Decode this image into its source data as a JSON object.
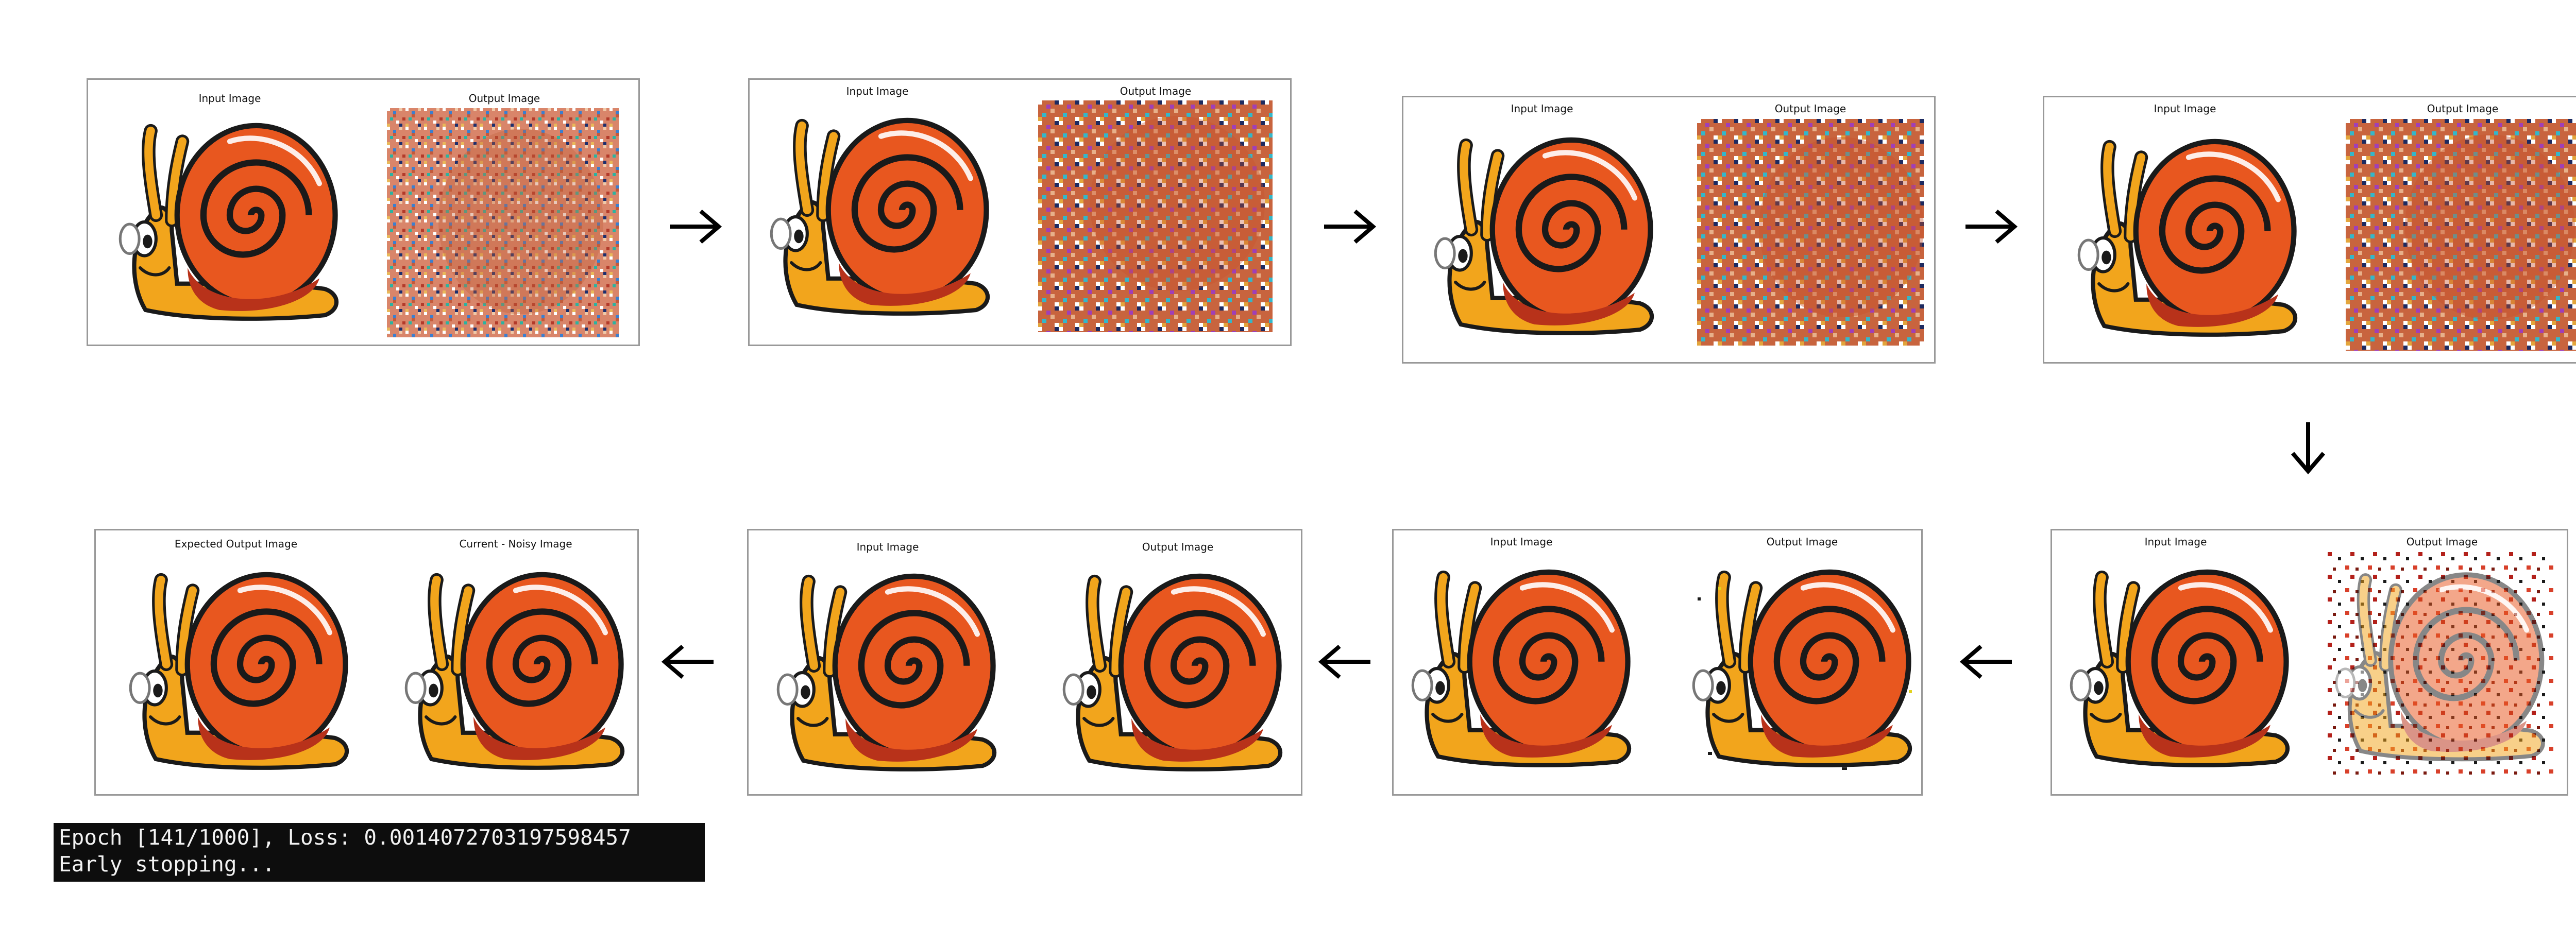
{
  "captions": {
    "input": "Input Image",
    "output": "Output Image",
    "expected": "Expected Output Image",
    "current": "Current - Noisy Image"
  },
  "icons": {
    "arrow_right": "arrow-right-icon",
    "arrow_left": "arrow-left-icon",
    "arrow_down": "arrow-down-icon",
    "snail": "snail-image",
    "noise": "noise-image"
  },
  "colors": {
    "shell_outer": "#e8571f",
    "shell_dark": "#b8321a",
    "body": "#f2a51c",
    "outline": "#1a1a1a"
  },
  "terminal": {
    "line1": "Epoch [141/1000], Loss: 0.0014072703197598457",
    "line2": "Early stopping..."
  }
}
